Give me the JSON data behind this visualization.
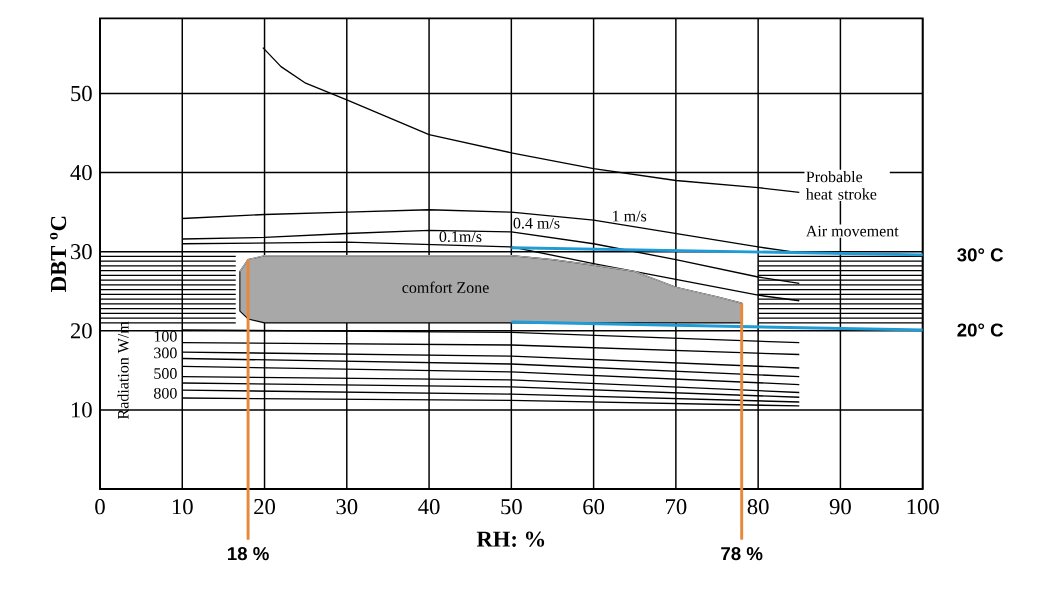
{
  "chart_data": {
    "type": "line",
    "xlabel": "RH: %",
    "ylabel": "DBT $^{o}$C",
    "xlim": [
      0,
      100
    ],
    "ylim": [
      0,
      59.5
    ],
    "xticks": [
      0,
      10,
      20,
      30,
      40,
      50,
      60,
      70,
      80,
      90,
      100
    ],
    "yticks": [
      10,
      20,
      30,
      40,
      50
    ],
    "grid": true,
    "marker": "none",
    "line_style": "solid",
    "series": [
      {
        "color": "#000000",
        "x": [
          19.8,
          22,
          25,
          30,
          40,
          50,
          60,
          70,
          80,
          85
        ],
        "values": [
          55.8,
          53.4,
          51.3,
          49.2,
          44.8,
          42.5,
          40.5,
          39,
          38.1,
          37.5
        ]
      },
      {
        "color": "#000000",
        "x": [
          10,
          20,
          30,
          40,
          50,
          60,
          70,
          80,
          84
        ],
        "values": [
          34.2,
          34.7,
          35,
          35.3,
          35,
          34,
          32.3,
          30.6,
          30
        ]
      },
      {
        "color": "#000000",
        "x": [
          10,
          20,
          30,
          40,
          50,
          60,
          70,
          80,
          85
        ],
        "values": [
          31.6,
          31.8,
          32.3,
          32.7,
          32.5,
          31,
          29,
          26.8,
          26
        ]
      },
      {
        "color": "#000000",
        "x": [
          10,
          30,
          50,
          60,
          70,
          80,
          85
        ],
        "values": [
          31,
          31.2,
          30.6,
          28.5,
          26.5,
          24.5,
          23.8
        ]
      },
      {
        "color": "#000000",
        "x": [
          0,
          16.5,
          50,
          80,
          100
        ],
        "values": [
          21.0,
          21.0,
          null,
          21.0,
          21.0
        ]
      },
      {
        "color": "#000000",
        "x": [
          0,
          16.5,
          50,
          80,
          100
        ],
        "values": [
          21.6,
          21.6,
          null,
          21.6,
          21.6
        ]
      },
      {
        "color": "#000000",
        "x": [
          0,
          16.5,
          50,
          80,
          100
        ],
        "values": [
          22.2,
          22.2,
          null,
          22.2,
          22.2
        ]
      },
      {
        "color": "#000000",
        "x": [
          0,
          16.5,
          50,
          80,
          100
        ],
        "values": [
          22.8,
          22.8,
          null,
          22.8,
          22.8
        ]
      },
      {
        "color": "#000000",
        "x": [
          0,
          16.5,
          50,
          80,
          100
        ],
        "values": [
          23.4,
          23.4,
          null,
          23.4,
          23.4
        ]
      },
      {
        "color": "#000000",
        "x": [
          0,
          16.5,
          50,
          80,
          100
        ],
        "values": [
          24.0,
          24.0,
          null,
          24.0,
          24.0
        ]
      },
      {
        "color": "#000000",
        "x": [
          0,
          16.5,
          50,
          80,
          100
        ],
        "values": [
          24.6,
          24.6,
          null,
          24.6,
          24.6
        ]
      },
      {
        "color": "#000000",
        "x": [
          0,
          16.5,
          50,
          80,
          100
        ],
        "values": [
          25.2,
          25.2,
          null,
          25.2,
          25.2
        ]
      },
      {
        "color": "#000000",
        "x": [
          0,
          16.5,
          50,
          80,
          100
        ],
        "values": [
          25.8,
          25.8,
          null,
          25.8,
          25.8
        ]
      },
      {
        "color": "#000000",
        "x": [
          0,
          16.5,
          50,
          80,
          100
        ],
        "values": [
          26.4,
          26.4,
          null,
          26.4,
          26.4
        ]
      },
      {
        "color": "#000000",
        "x": [
          0,
          16.5,
          50,
          80,
          100
        ],
        "values": [
          27.0,
          27.0,
          null,
          27.0,
          27.0
        ]
      },
      {
        "color": "#000000",
        "x": [
          0,
          16.5,
          50,
          80,
          100
        ],
        "values": [
          27.6,
          27.6,
          null,
          27.6,
          27.6
        ]
      },
      {
        "color": "#000000",
        "x": [
          0,
          16.5,
          50,
          80,
          100
        ],
        "values": [
          28.2,
          28.2,
          null,
          28.2,
          28.2
        ]
      },
      {
        "color": "#000000",
        "x": [
          0,
          16.5,
          50,
          80,
          100
        ],
        "values": [
          28.8,
          28.8,
          null,
          28.8,
          28.8
        ]
      },
      {
        "color": "#000000",
        "x": [
          0,
          16.5,
          50,
          80,
          100
        ],
        "values": [
          29.4,
          29.4,
          null,
          29.4,
          29.4
        ]
      },
      {
        "color": "#000000",
        "x": [
          10,
          50,
          85
        ],
        "values": [
          20.1,
          19.8,
          18.5
        ]
      },
      {
        "color": "#000000",
        "x": [
          10,
          50,
          85
        ],
        "values": [
          18.5,
          18.2,
          17
        ]
      },
      {
        "color": "#000000",
        "x": [
          10,
          50,
          85
        ],
        "values": [
          17.3,
          16.8,
          15.3
        ]
      },
      {
        "color": "#000000",
        "x": [
          10,
          50,
          85
        ],
        "values": [
          16.5,
          15.8,
          14.2
        ]
      },
      {
        "color": "#000000",
        "x": [
          10,
          50,
          85
        ],
        "values": [
          15.5,
          14.8,
          13.2
        ]
      },
      {
        "color": "#000000",
        "x": [
          10,
          50,
          85
        ],
        "values": [
          14.2,
          13.8,
          12.2
        ]
      },
      {
        "color": "#000000",
        "x": [
          10,
          50,
          85
        ],
        "values": [
          13.4,
          12.9,
          11.6
        ]
      },
      {
        "color": "#000000",
        "x": [
          10,
          50,
          85
        ],
        "values": [
          12.5,
          12,
          11
        ]
      },
      {
        "color": "#000000",
        "x": [
          10,
          50,
          85
        ],
        "values": [
          11.5,
          11.2,
          10.5
        ]
      },
      {
        "color": "#a8a8a8",
        "x": [
          17,
          18,
          20,
          30,
          40,
          50,
          55,
          60,
          65,
          70,
          75,
          78
        ],
        "values": [
          27.5,
          29,
          29.5,
          29.5,
          29.5,
          29.5,
          29,
          28.3,
          27.5,
          25.5,
          24.3,
          23.5
        ],
        "upper": [
          27.5,
          29,
          29.5,
          29.5,
          29.5,
          29.5,
          29,
          28.3,
          27.5,
          25.5,
          24.3,
          23.5
        ],
        "lower": [
          22.5,
          21.5,
          21,
          21,
          21,
          21,
          21,
          21,
          21,
          21,
          21,
          21
        ]
      },
      {
        "name": "30° C",
        "color": "#1f9bd7",
        "x": [
          50,
          100
        ],
        "values": [
          30.5,
          29.6
        ]
      },
      {
        "name": "20° C",
        "color": "#1f9bd7",
        "x": [
          50,
          100
        ],
        "values": [
          21.1,
          20.1
        ]
      }
    ],
    "ref_lines": [
      {
        "axis": "x",
        "value": 18,
        "label": "18 %",
        "color": "#e8883a"
      },
      {
        "axis": "x",
        "value": 78,
        "label": "78 %",
        "color": "#e8883a"
      }
    ],
    "annotations": [
      "Probable heat stroke",
      "Air movement",
      "0.1m/s",
      "0.4 m/s",
      "1 m/s",
      "comfort Zone",
      "Radiation W/m",
      "100",
      "300",
      "500",
      "800"
    ]
  }
}
